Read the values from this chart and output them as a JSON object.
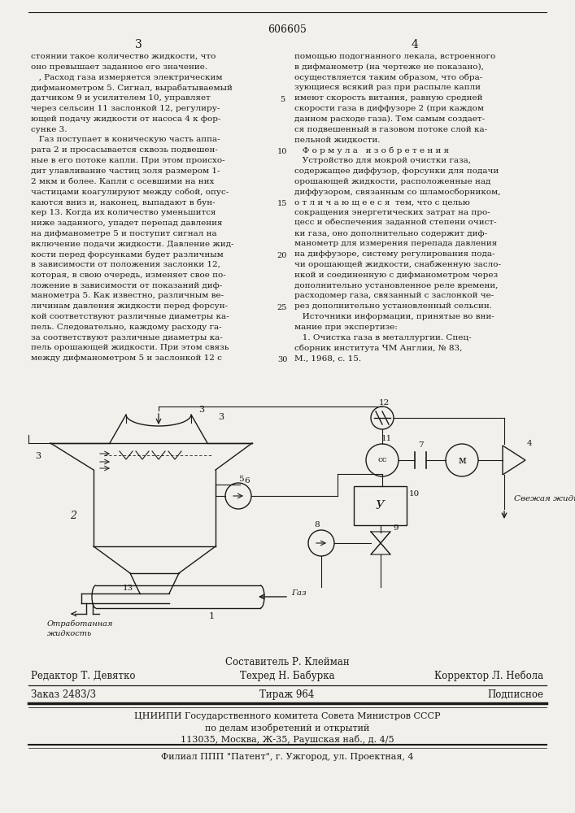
{
  "title": "606605",
  "background_color": "#f2f0eb",
  "text_color": "#1a1a1a",
  "col1_lines": [
    "стоянии такое количество жидкости, что",
    "оно превышает заданное его значение.",
    "   , Расход газа измеряется электрическим",
    "дифманометром 5. Сигнал, вырабатываемый",
    "датчиком 9 и усилителем 10, управляет",
    "через сельсин 11 заслонкой 12, регулиру-",
    "ющей подачу жидкости от насоса 4 к фор-",
    "сунке 3.",
    "   Газ поступает в коническую часть аппа-",
    "рата 2 и просасывается сквозь подвешен-",
    "ные в его потоке капли. При этом происхо-",
    "дит улавливание частиц золя размером 1-",
    "2 мкм и более. Капли с осевшими на них",
    "частицами коагулируют между собой, опус-",
    "каются вниз и, наконец, выпадают в бун-",
    "кер 13. Когда их количество уменьшится",
    "ниже заданного, упадет перепад давления",
    "на дифманометре 5 и поступит сигнал на",
    "включение подачи жидкости. Давление жид-",
    "кости перед форсунками будет различным",
    "в зависимости от положения заслонки 12,",
    "которая, в свою очередь, изменяет свое по-",
    "ложение в зависимости от показаний диф-",
    "манометра 5. Как известно, различным ве-",
    "личинам давления жидкости перед форсун-",
    "кой соответствуют различные диаметры ка-",
    "пель. Следовательно, каждому расходу га-",
    "за соответствуют различные диаметры ка-",
    "пель орошающей жидкости. При этом связь",
    "между дифманометром 5 и заслонкой 12 с"
  ],
  "col2_lines": [
    "помощью подогнанного лекала, встроенного",
    "в дифманометр (на чертеже не показано),",
    "осуществляется таким образом, что обра-",
    "зующиеся всякий раз при распыле капли",
    "имеют скорость витания, равную средней",
    "скорости газа в диффузоре 2 (при каждом",
    "данном расходе газа). Тем самым создает-",
    "ся подвешенный в газовом потоке слой ка-",
    "пельной жидкости.",
    "   Ф о р м у л а   и з о б р е т е н и я",
    "   Устройство для мокрой очистки газа,",
    "содержащее диффузор, форсунки для подачи",
    "орошающей жидкости, расположенные над",
    "диффузором, связанным со шламосборником,",
    "о т л и ч а ю щ е е с я  тем, что с целью",
    "сокращения энергетических затрат на про-",
    "цесс и обеспечения заданной степени очист-",
    "ки газа, оно дополнительно содержит диф-",
    "манометр для измерения перепада давления",
    "на диффузоре, систему регулирования пода-",
    "чи орошающей жидкости, снабженную засло-",
    "нкой и соединенную с дифманометром через",
    "дополнительно установленное реле времени,",
    "расходомер газа, связанный с заслонкой че-",
    "рез дополнительно установленный сельсин.",
    "   Источники информации, принятые во вни-",
    "мание при экспертизе:",
    "   1. Очистка газа в металлургии. Спец-",
    "сборник института ЧМ Англии, № 83,",
    "М., 1968, с. 15."
  ],
  "line_numbers": [
    5,
    10,
    15,
    20,
    25,
    30
  ],
  "composer": "Составитель Р. Клейман",
  "footer_left": "Редактор Т. Девятко",
  "footer_center": "Техред Н. Бабурка",
  "footer_right": "Корректор Л. Небола",
  "footer2_left": "Заказ 2483/3",
  "footer2_center": "Тираж 964",
  "footer2_right": "Подписное",
  "footer3": "ЦНИИПИ Государственного комитета Совета Министров СССР",
  "footer4": "по делам изобретений и открытий",
  "footer5": "113035, Москва, Ж-35, Раушская наб., д. 4/5",
  "footer6": "Филиал ППП \"Патент\", г. Ужгород, ул. Проектная, 4"
}
